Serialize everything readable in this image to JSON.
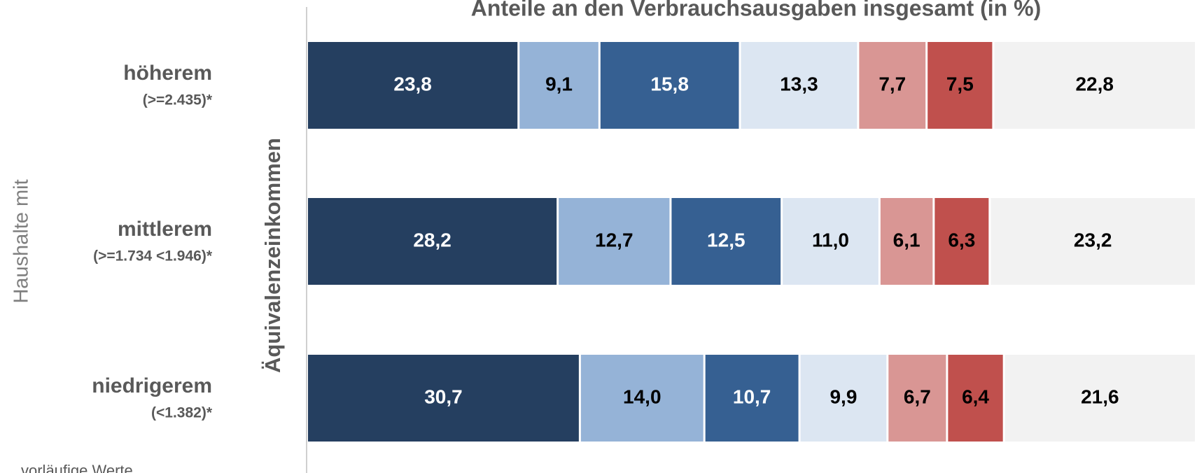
{
  "chart_data": {
    "type": "stacked_barh",
    "title": "Anteile an den Verbrauchsausgaben insgesamt (in %)",
    "group_label": "Haushalte mit",
    "axis_label": "Äquivalenzeinkommen",
    "footnote": "vorläufige Werte",
    "categories": [
      "höherem",
      "mittlerem",
      "niedrigerem"
    ],
    "category_sublabels": [
      "(>=2.435)*",
      "(>=1.734 <1.946)*",
      "(<1.382)*"
    ],
    "xlim": [
      0,
      100
    ],
    "series": [
      {
        "color": "#253f60",
        "label_color": "#ffffff",
        "values": [
          23.8,
          28.2,
          30.7
        ],
        "value_labels": [
          "23,8",
          "28,2",
          "30,7"
        ]
      },
      {
        "color": "#95b3d7",
        "label_color": "#000000",
        "values": [
          9.1,
          12.7,
          14.0
        ],
        "value_labels": [
          "9,1",
          "12,7",
          "14,0"
        ]
      },
      {
        "color": "#366092",
        "label_color": "#ffffff",
        "values": [
          15.8,
          12.5,
          10.7
        ],
        "value_labels": [
          "15,8",
          "12,5",
          "10,7"
        ]
      },
      {
        "color": "#dce6f2",
        "label_color": "#000000",
        "values": [
          13.3,
          11.0,
          9.9
        ],
        "value_labels": [
          "13,3",
          "11,0",
          "9,9"
        ]
      },
      {
        "color": "#d99694",
        "label_color": "#000000",
        "values": [
          7.7,
          6.1,
          6.7
        ],
        "value_labels": [
          "7,7",
          "6,1",
          "6,7"
        ]
      },
      {
        "color": "#c0504d",
        "label_color": "#000000",
        "values": [
          7.5,
          6.3,
          6.4
        ],
        "value_labels": [
          "7,5",
          "6,3",
          "6,4"
        ]
      },
      {
        "color": "#f2f2f2",
        "label_color": "#000000",
        "values": [
          22.8,
          23.2,
          21.6
        ],
        "value_labels": [
          "22,8",
          "23,2",
          "21,6"
        ]
      }
    ]
  }
}
